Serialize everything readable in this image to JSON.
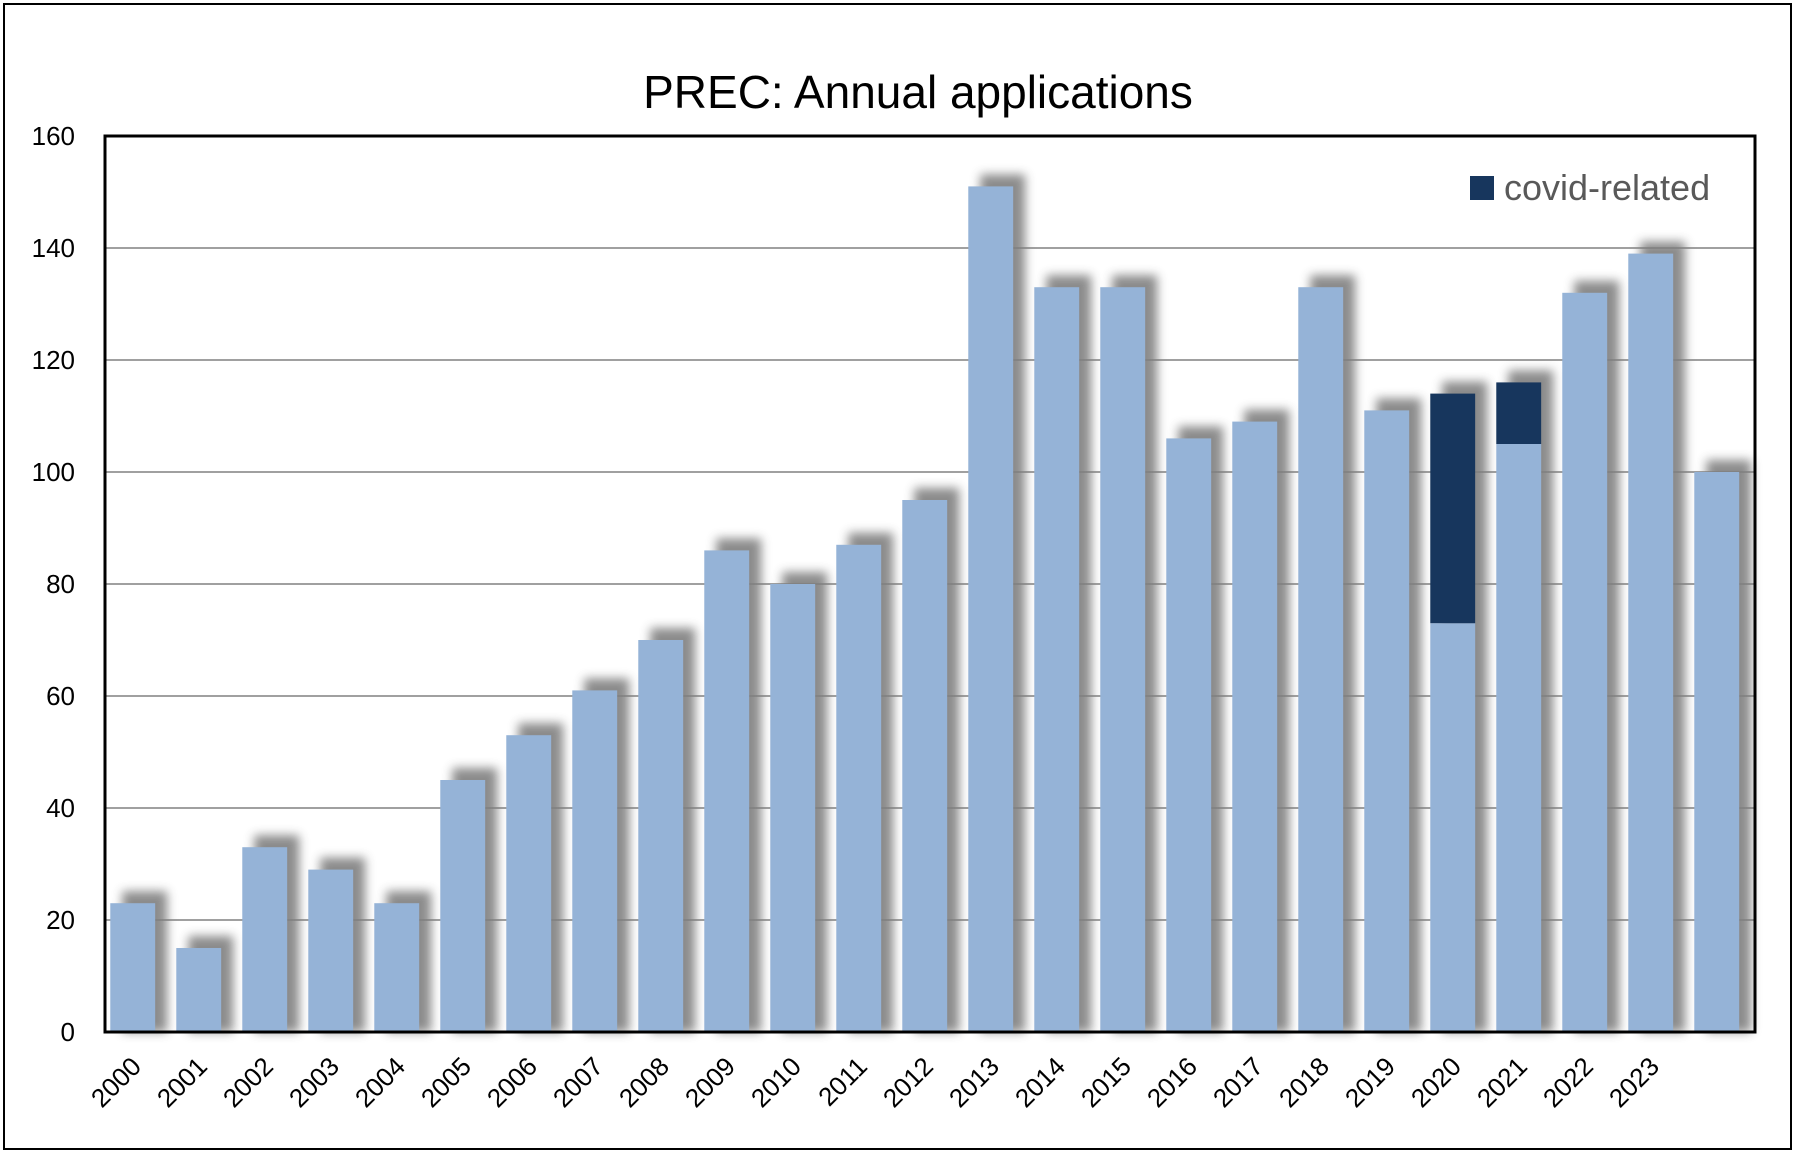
{
  "chart_data": {
    "type": "bar",
    "stacked": true,
    "title": "PREC: Annual applications",
    "xlabel": "",
    "ylabel": "",
    "ylim": [
      0,
      160
    ],
    "yticks": [
      0,
      20,
      40,
      60,
      80,
      100,
      120,
      140,
      160
    ],
    "grid": true,
    "categories": [
      "2000",
      "2001",
      "2002",
      "2003",
      "2004",
      "2005",
      "2006",
      "2007",
      "2008",
      "2009",
      "2010",
      "2011",
      "2012",
      "2013",
      "2014",
      "2015",
      "2016",
      "2017",
      "2018",
      "2019",
      "2020",
      "2021",
      "2022",
      "2023",
      ""
    ],
    "series": [
      {
        "values": [
          23,
          15,
          33,
          29,
          23,
          45,
          53,
          61,
          70,
          86,
          80,
          87,
          95,
          151,
          133,
          133,
          106,
          109,
          133,
          111,
          73,
          105,
          132,
          139,
          100
        ],
        "color": "#95b3d7"
      },
      {
        "name": "covid-related",
        "values": [
          0,
          0,
          0,
          0,
          0,
          0,
          0,
          0,
          0,
          0,
          0,
          0,
          0,
          0,
          0,
          0,
          0,
          0,
          0,
          0,
          41,
          11,
          0,
          0,
          0
        ],
        "color": "#17365d"
      }
    ],
    "legend": {
      "position": "top-right",
      "label_color": "#595959"
    },
    "colors": {
      "grid": "#808080",
      "axes": "#000000",
      "shadow": "#7f7f7f"
    }
  }
}
